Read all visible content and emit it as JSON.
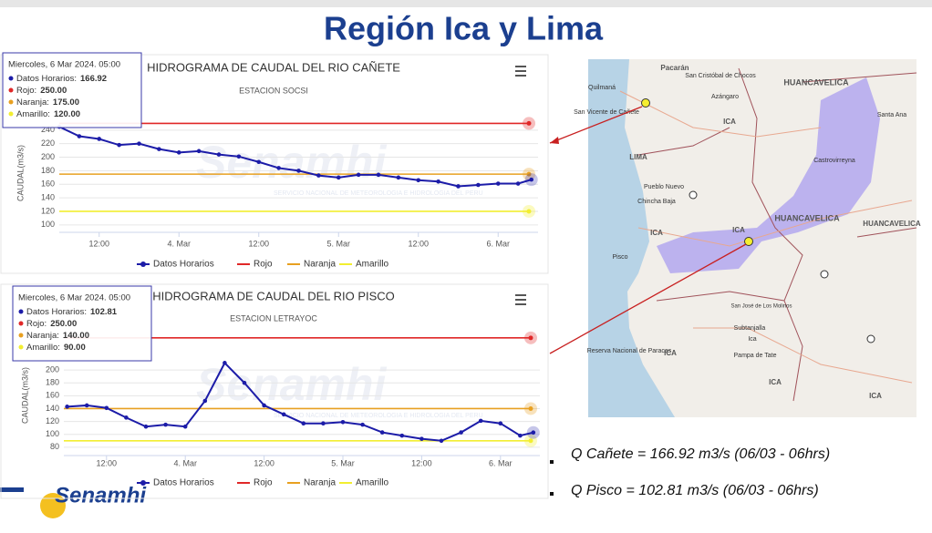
{
  "page_title": "Región Ica y Lima",
  "chart_data": [
    {
      "type": "line",
      "title": "HIDROGRAMA DE CAUDAL DEL RIO CAÑETE",
      "subtitle": "ESTACION SOCSI",
      "y_label": "CAUDAL(m3/s)",
      "xlim": [
        6,
        78
      ],
      "xticks": [
        {
          "value": 12,
          "label": "12:00"
        },
        {
          "value": 24,
          "label": "4. Mar"
        },
        {
          "value": 36,
          "label": "12:00"
        },
        {
          "value": 48,
          "label": "5. Mar"
        },
        {
          "value": 60,
          "label": "12:00"
        },
        {
          "value": 72,
          "label": "6. Mar"
        }
      ],
      "ylim": [
        89,
        264
      ],
      "yticks": [
        100,
        120,
        140,
        160,
        180,
        200,
        220,
        240
      ],
      "x": [
        6,
        9,
        12,
        15,
        18,
        21,
        24,
        27,
        30,
        33,
        36,
        39,
        42,
        45,
        48,
        51,
        54,
        57,
        60,
        63,
        66,
        69,
        72,
        75,
        77
      ],
      "series": [
        {
          "name": "Datos Horarios",
          "color": "#1c1ca8",
          "values": [
            245,
            231,
            227,
            218,
            220,
            212,
            207,
            209,
            204,
            201,
            193,
            184,
            180,
            173,
            170,
            174,
            174,
            170,
            166,
            164,
            157,
            159,
            161,
            161,
            166.92
          ]
        }
      ],
      "thresholds": [
        {
          "name": "Rojo",
          "color": "#e02828",
          "value": 250
        },
        {
          "name": "Naranja",
          "color": "#e8a020",
          "value": 175
        },
        {
          "name": "Amarillo",
          "color": "#f2ee30",
          "value": 120
        }
      ],
      "tooltip": {
        "header": "Miercoles, 6 Mar 2024. 05:00",
        "lines": [
          {
            "label": "Datos Horarios:",
            "value": "166.92"
          },
          {
            "label": "Rojo:",
            "value": "250.00"
          },
          {
            "label": "Naranja:",
            "value": "175.00"
          },
          {
            "label": "Amarillo:",
            "value": "120.00"
          }
        ]
      }
    },
    {
      "type": "line",
      "title": "HIDROGRAMA DE CAUDAL DEL RIO PISCO",
      "subtitle": "ESTACION LETRAYOC",
      "y_label": "CAUDAL(m3/s)",
      "xlim": [
        5.5,
        78
      ],
      "xticks": [
        {
          "value": 12,
          "label": "12:00"
        },
        {
          "value": 24,
          "label": "4. Mar"
        },
        {
          "value": 36,
          "label": "12:00"
        },
        {
          "value": 48,
          "label": "5. Mar"
        },
        {
          "value": 60,
          "label": "12:00"
        },
        {
          "value": 72,
          "label": "6. Mar"
        }
      ],
      "ylim": [
        67,
        254
      ],
      "yticks": [
        80,
        100,
        120,
        140,
        160,
        180,
        200
      ],
      "x": [
        6,
        9,
        12,
        15,
        18,
        21,
        24,
        27,
        30,
        33,
        36,
        39,
        42,
        45,
        48,
        51,
        54,
        57,
        60,
        63,
        66,
        69,
        72,
        75,
        77
      ],
      "series": [
        {
          "name": "Datos Horarios",
          "color": "#1c1ca8",
          "values": [
            143,
            145,
            141,
            126,
            112,
            115,
            112,
            152,
            211,
            180,
            145,
            131,
            117,
            117,
            119,
            115,
            103,
            98,
            93,
            90,
            103,
            121,
            117,
            98,
            102.81
          ]
        }
      ],
      "thresholds": [
        {
          "name": "Rojo",
          "color": "#e02828",
          "value": 250
        },
        {
          "name": "Naranja",
          "color": "#e8a020",
          "value": 140
        },
        {
          "name": "Amarillo",
          "color": "#f2ee30",
          "value": 90
        }
      ],
      "tooltip": {
        "header": "Miercoles, 6 Mar 2024. 05:00",
        "lines": [
          {
            "label": "Datos Horarios:",
            "value": "102.81"
          },
          {
            "label": "Rojo:",
            "value": "250.00"
          },
          {
            "label": "Naranja:",
            "value": "140.00"
          },
          {
            "label": "Amarillo:",
            "value": "90.00"
          }
        ]
      }
    }
  ],
  "watermark": {
    "name": "Senamhi",
    "org": "SERVICIO NACIONAL DE METEOROLOGIA E HIDROLOGIA DEL PERU"
  },
  "map_labels": [
    "Pacarán",
    "San Cristóbal de Chocos",
    "Quilmaná",
    "Azángaro",
    "HUANCAVELICA",
    "San Vicente de Cañete",
    "ICA",
    "LIMA",
    "Santa Ana",
    "Castrovirreyna",
    "Pueblo Nuevo",
    "Chincha Baja",
    "ICA",
    "HUANCAVELICA",
    "HUANCAVELICA",
    "ICA",
    "Pisco",
    "San José de Los Molinos",
    "Subtanjalla",
    "Ica",
    "Pampa de Tate",
    "Reserva Nacional de Paracas",
    "ICA",
    "ICA",
    "ICA"
  ],
  "notes": [
    "Q Cañete = 166.92 m3/s (06/03 - 06hrs)",
    "Q Pisco = 102.81 m3/s (06/03 - 06hrs)"
  ]
}
